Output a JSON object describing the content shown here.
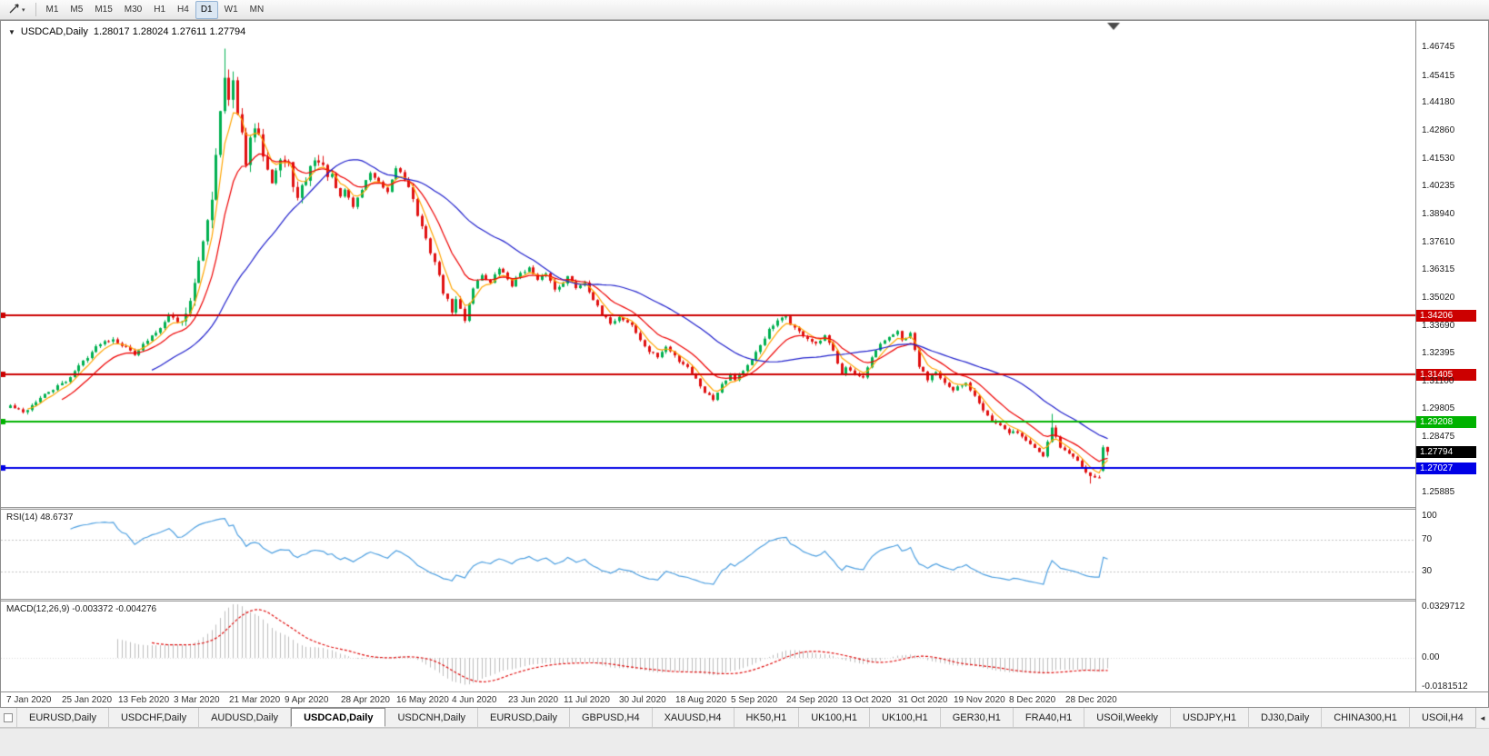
{
  "toolbar": {
    "timeframes": [
      "M1",
      "M5",
      "M15",
      "M30",
      "H1",
      "H4",
      "D1",
      "W1",
      "MN"
    ],
    "active_timeframe": "D1"
  },
  "icons": {
    "chart_cursor": "trendline-cursor",
    "dropdown_glyph": "▾",
    "collapse_glyph": "▼",
    "shift_marker_glyph": "▼",
    "tab_scroll_left_glyph": "◄"
  },
  "chart": {
    "title": "USDCAD,Daily",
    "ohlc_display": "1.28017 1.28024 1.27611 1.27794"
  },
  "rsi": {
    "label": "RSI(14) 48.6737"
  },
  "macd": {
    "label": "MACD(12,26,9) -0.003372 -0.004276"
  },
  "tabs": {
    "active_index": 3,
    "items": [
      "EURUSD,Daily",
      "USDCHF,Daily",
      "AUDUSD,Daily",
      "USDCAD,Daily",
      "USDCNH,Daily",
      "EURUSD,Daily",
      "GBPUSD,H4",
      "XAUUSD,H4",
      "HK50,H1",
      "UK100,H1",
      "UK100,H1",
      "GER30,H1",
      "FRA40,H1",
      "USOil,Weekly",
      "USDJPY,H1",
      "DJ30,Daily",
      "CHINA300,H1",
      "USOil,H4"
    ]
  },
  "chart_data": {
    "type": "candlestick",
    "symbol": "USDCAD",
    "timeframe": "Daily",
    "last_candle": {
      "open": 1.28017,
      "high": 1.28024,
      "low": 1.27611,
      "close": 1.27794
    },
    "price_axis_labels": [
      "1.46745",
      "1.45415",
      "1.44180",
      "1.42860",
      "1.41530",
      "1.40235",
      "1.38940",
      "1.37610",
      "1.36315",
      "1.35020",
      "1.33690",
      "1.32395",
      "1.31100",
      "1.29805",
      "1.28475",
      "1.25885"
    ],
    "price_range": {
      "top": 1.48,
      "bottom": 1.252
    },
    "x_axis_dates": [
      "7 Jan 2020",
      "25 Jan 2020",
      "13 Feb 2020",
      "3 Mar 2020",
      "21 Mar 2020",
      "9 Apr 2020",
      "28 Apr 2020",
      "16 May 2020",
      "4 Jun 2020",
      "23 Jun 2020",
      "11 Jul 2020",
      "30 Jul 2020",
      "18 Aug 2020",
      "5 Sep 2020",
      "24 Sep 2020",
      "13 Oct 2020",
      "31 Oct 2020",
      "19 Nov 2020",
      "8 Dec 2020",
      "28 Dec 2020"
    ],
    "candles_per_date_label": 13,
    "candle_count": 257,
    "close_anchors": [
      [
        0,
        1.2995
      ],
      [
        3,
        1.2962
      ],
      [
        6,
        1.3015
      ],
      [
        9,
        1.306
      ],
      [
        13,
        1.311
      ],
      [
        17,
        1.3205
      ],
      [
        21,
        1.329
      ],
      [
        24,
        1.331
      ],
      [
        26,
        1.328
      ],
      [
        29,
        1.324
      ],
      [
        32,
        1.33
      ],
      [
        35,
        1.336
      ],
      [
        37,
        1.343
      ],
      [
        39,
        1.3385
      ],
      [
        41,
        1.342
      ],
      [
        43,
        1.358
      ],
      [
        45,
        1.375
      ],
      [
        47,
        1.398
      ],
      [
        49,
        1.439
      ],
      [
        50,
        1.456
      ],
      [
        51,
        1.442
      ],
      [
        52,
        1.451
      ],
      [
        53,
        1.435
      ],
      [
        55,
        1.415
      ],
      [
        57,
        1.43
      ],
      [
        59,
        1.418
      ],
      [
        61,
        1.406
      ],
      [
        63,
        1.415
      ],
      [
        65,
        1.412
      ],
      [
        67,
        1.396
      ],
      [
        69,
        1.406
      ],
      [
        71,
        1.416
      ],
      [
        73,
        1.411
      ],
      [
        75,
        1.406
      ],
      [
        77,
        1.397
      ],
      [
        78,
        1.401
      ],
      [
        80,
        1.393
      ],
      [
        82,
        1.401
      ],
      [
        84,
        1.409
      ],
      [
        86,
        1.404
      ],
      [
        88,
        1.399
      ],
      [
        90,
        1.411
      ],
      [
        91,
        1.409
      ],
      [
        93,
        1.403
      ],
      [
        95,
        1.389
      ],
      [
        97,
        1.377
      ],
      [
        99,
        1.367
      ],
      [
        101,
        1.353
      ],
      [
        103,
        1.344
      ],
      [
        104,
        1.349
      ],
      [
        106,
        1.34
      ],
      [
        108,
        1.355
      ],
      [
        110,
        1.361
      ],
      [
        112,
        1.357
      ],
      [
        114,
        1.364
      ],
      [
        116,
        1.359
      ],
      [
        117,
        1.356
      ],
      [
        119,
        1.362
      ],
      [
        121,
        1.364
      ],
      [
        123,
        1.358
      ],
      [
        125,
        1.362
      ],
      [
        127,
        1.354
      ],
      [
        129,
        1.3575
      ],
      [
        130,
        1.36
      ],
      [
        132,
        1.355
      ],
      [
        134,
        1.3575
      ],
      [
        136,
        1.3495
      ],
      [
        138,
        1.342
      ],
      [
        140,
        1.3385
      ],
      [
        142,
        1.341
      ],
      [
        143,
        1.34
      ],
      [
        145,
        1.3375
      ],
      [
        147,
        1.33
      ],
      [
        149,
        1.325
      ],
      [
        151,
        1.3225
      ],
      [
        153,
        1.327
      ],
      [
        155,
        1.323
      ],
      [
        156,
        1.3205
      ],
      [
        158,
        1.318
      ],
      [
        160,
        1.312
      ],
      [
        162,
        1.306
      ],
      [
        164,
        1.3025
      ],
      [
        166,
        1.31
      ],
      [
        168,
        1.314
      ],
      [
        169,
        1.312
      ],
      [
        171,
        1.316
      ],
      [
        173,
        1.3205
      ],
      [
        175,
        1.328
      ],
      [
        177,
        1.335
      ],
      [
        179,
        1.339
      ],
      [
        181,
        1.3415
      ],
      [
        182,
        1.338
      ],
      [
        184,
        1.334
      ],
      [
        186,
        1.331
      ],
      [
        188,
        1.328
      ],
      [
        190,
        1.332
      ],
      [
        192,
        1.325
      ],
      [
        194,
        1.315
      ],
      [
        195,
        1.318
      ],
      [
        197,
        1.314
      ],
      [
        199,
        1.312
      ],
      [
        201,
        1.322
      ],
      [
        203,
        1.328
      ],
      [
        205,
        1.332
      ],
      [
        207,
        1.334
      ],
      [
        208,
        1.33
      ],
      [
        210,
        1.333
      ],
      [
        212,
        1.318
      ],
      [
        214,
        1.312
      ],
      [
        216,
        1.316
      ],
      [
        218,
        1.31
      ],
      [
        220,
        1.306
      ],
      [
        221,
        1.308
      ],
      [
        223,
        1.31
      ],
      [
        225,
        1.3045
      ],
      [
        227,
        1.298
      ],
      [
        229,
        1.2925
      ],
      [
        231,
        1.29
      ],
      [
        233,
        1.2862
      ],
      [
        234,
        1.288
      ],
      [
        236,
        1.285
      ],
      [
        239,
        1.2798
      ],
      [
        241,
        1.276
      ],
      [
        243,
        1.2898
      ],
      [
        245,
        1.2802
      ],
      [
        247,
        1.277
      ],
      [
        249,
        1.2738
      ],
      [
        251,
        1.269
      ],
      [
        253,
        1.2652
      ],
      [
        254,
        1.2665
      ],
      [
        255,
        1.28
      ],
      [
        256,
        1.27794
      ]
    ],
    "overrides": {
      "50": {
        "high": 1.467
      },
      "243": {
        "high": 1.2957
      },
      "252": {
        "low": 1.263
      },
      "255": {
        "open": 1.269,
        "close": 1.28,
        "high": 1.281,
        "low": 1.2685
      },
      "256": {
        "open": 1.28017,
        "high": 1.28024,
        "low": 1.27611,
        "close": 1.27794
      }
    },
    "colors": {
      "bull": "#00B050",
      "bear": "#E01010",
      "ma_fast": "#FFA500",
      "ma_mid": "#EE0000",
      "ma_slow": "#2020CC",
      "rsi_line": "#4D9FE0",
      "macd_hist": "#BDBDBD",
      "macd_signal": "#E01010"
    },
    "moving_averages": [
      {
        "type": "EMA",
        "period": 5,
        "color_key": "ma_fast"
      },
      {
        "type": "EMA",
        "period": 13,
        "color_key": "ma_mid"
      },
      {
        "type": "SMA",
        "period": 34,
        "color_key": "ma_slow"
      }
    ],
    "horizontal_lines": [
      {
        "value": 1.34206,
        "label": "1.34206",
        "color": "#CC0000"
      },
      {
        "value": 1.31405,
        "label": "1.31405",
        "color": "#CC0000"
      },
      {
        "value": 1.29208,
        "label": "1.29208",
        "color": "#00B200"
      },
      {
        "value": 1.27027,
        "label": "1.27027",
        "color": "#0000E6"
      }
    ],
    "current_price_tag": {
      "value": 1.27794,
      "label": "1.27794",
      "bg": "#000000"
    },
    "rsi_panel": {
      "period": 14,
      "current": 48.6737,
      "color_key": "rsi_line",
      "axis_labels": [
        {
          "label": "100",
          "value": 100
        },
        {
          "label": "70",
          "value": 70
        },
        {
          "label": "30",
          "value": 30
        }
      ],
      "level_lines": [
        70,
        30
      ]
    },
    "macd_panel": {
      "fast": 12,
      "slow": 26,
      "signal": 9,
      "current_main": -0.003372,
      "current_signal": -0.004276,
      "axis_labels": [
        {
          "label": "0.0329712",
          "value": 0.0329712
        },
        {
          "label": "0.00",
          "value": 0
        },
        {
          "label": "-0.0181512",
          "value": -0.0181512
        }
      ]
    }
  }
}
